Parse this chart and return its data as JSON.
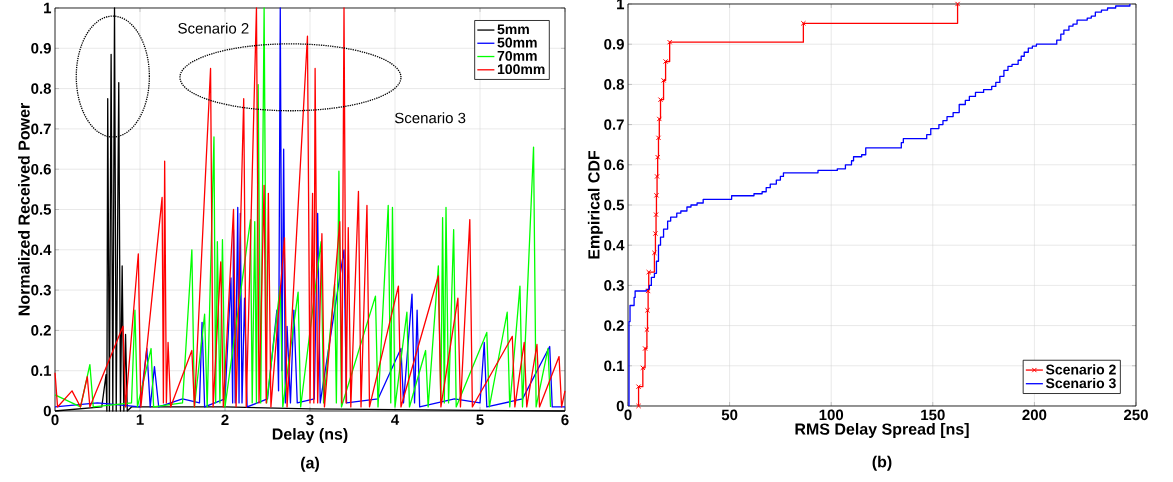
{
  "chart_data": [
    {
      "type": "line",
      "xlabel": "Delay (ns)",
      "ylabel": "Normalized Received Power",
      "xlim": [
        0,
        6
      ],
      "ylim": [
        0,
        1
      ],
      "xticks": [
        0,
        1,
        2,
        3,
        4,
        5,
        6
      ],
      "yticks": [
        0,
        0.1,
        0.2,
        0.3,
        0.4,
        0.5,
        0.6,
        0.7,
        0.8,
        0.9,
        1
      ],
      "grid": true,
      "legend": "top right",
      "annotations": [
        "Scenario 2",
        "Scenario 3",
        "(a)"
      ],
      "series": [
        {
          "name": "5mm",
          "color": "#000000",
          "x": [
            0,
            0.55,
            0.6,
            0.61,
            0.62,
            0.64,
            0.66,
            0.68,
            0.7,
            0.72,
            0.75,
            0.77,
            0.79,
            0.81,
            0.83,
            0.85,
            0.9,
            2,
            3,
            6
          ],
          "values": [
            0,
            0.01,
            0.09,
            0,
            0.775,
            0,
            0.885,
            0,
            1.0,
            0,
            0.815,
            0,
            0.36,
            0,
            0.19,
            0,
            0.01,
            0.01,
            0.005,
            0
          ]
        },
        {
          "name": "50mm",
          "color": "#0000ff",
          "x": [
            0,
            0.5,
            1.0,
            1.08,
            1.12,
            1.17,
            1.22,
            1.5,
            1.7,
            1.73,
            1.76,
            2.0,
            2.07,
            2.09,
            2.1,
            2.12,
            2.15,
            2.165,
            2.18,
            2.2,
            2.23,
            2.26,
            2.5,
            2.61,
            2.63,
            2.65,
            2.67,
            2.69,
            2.71,
            2.73,
            2.77,
            2.81,
            2.85,
            3.05,
            3.09,
            3.12,
            3.4,
            3.43,
            3.8,
            4.07,
            4.1,
            4.2,
            4.23,
            4.26,
            4.29,
            4.7,
            5.0,
            5.05,
            5.08,
            5.5,
            5.82,
            5.85,
            6
          ],
          "values": [
            0.01,
            0.02,
            0.01,
            0.155,
            0.01,
            0.11,
            0.01,
            0.03,
            0.02,
            0.22,
            0.01,
            0.03,
            0.33,
            0.02,
            0.45,
            0.02,
            0.505,
            0.02,
            0.49,
            0.02,
            0.28,
            0.01,
            0.03,
            0.25,
            0.05,
            1.0,
            0.1,
            0.65,
            0.02,
            0.21,
            0.02,
            0.25,
            0.02,
            0.03,
            0.49,
            0.02,
            0.4,
            0.02,
            0.03,
            0.155,
            0.02,
            0.29,
            0.02,
            0.25,
            0.01,
            0.03,
            0.02,
            0.17,
            0.01,
            0.03,
            0.16,
            0.01,
            0.01
          ]
        },
        {
          "name": "70mm",
          "color": "#00ff00",
          "x": [
            0,
            0.3,
            0.41,
            0.45,
            0.9,
            0.94,
            0.97,
            1.13,
            1.16,
            1.5,
            1.61,
            1.64,
            1.76,
            1.79,
            1.87,
            1.89,
            1.91,
            1.94,
            1.97,
            2.0,
            2.3,
            2.32,
            2.35,
            2.37,
            2.39,
            2.42,
            2.46,
            2.49,
            2.65,
            2.68,
            2.86,
            2.89,
            3.13,
            3.16,
            3.29,
            3.31,
            3.34,
            3.37,
            3.77,
            3.8,
            3.92,
            3.95,
            3.97,
            4.0,
            4.14,
            4.17,
            4.36,
            4.39,
            4.51,
            4.54,
            4.56,
            4.58,
            4.6,
            4.63,
            4.69,
            4.72,
            5.08,
            5.11,
            5.32,
            5.35,
            5.47,
            5.5,
            5.63,
            5.66,
            5.8,
            5.83
          ],
          "values": [
            0.04,
            0.01,
            0.115,
            0.01,
            0.02,
            0.25,
            0.01,
            0.155,
            0.01,
            0.02,
            0.4,
            0.01,
            0.24,
            0.01,
            0.68,
            0.02,
            0.42,
            0.02,
            0.425,
            0.01,
            0.475,
            0.02,
            0.47,
            0.02,
            0.81,
            0.02,
            1.0,
            0.02,
            0.31,
            0.01,
            0.295,
            0.01,
            0.42,
            0.02,
            0.315,
            0.02,
            0.595,
            0.01,
            0.285,
            0.01,
            0.51,
            0.02,
            0.505,
            0.01,
            0.245,
            0.01,
            0.15,
            0.01,
            0.36,
            0.02,
            0.48,
            0.02,
            0.505,
            0.02,
            0.45,
            0.01,
            0.195,
            0.01,
            0.245,
            0.01,
            0.31,
            0.01,
            0.655,
            0.01,
            0.155,
            0.01
          ]
        },
        {
          "name": "100mm",
          "color": "#ff0000",
          "x": [
            0,
            0.03,
            0.2,
            0.3,
            0.38,
            0.41,
            0.8,
            0.83,
            0.98,
            1.01,
            1.26,
            1.275,
            1.29,
            1.31,
            1.33,
            1.36,
            1.61,
            1.64,
            1.83,
            1.86,
            1.95,
            1.98,
            2.1,
            2.13,
            2.22,
            2.25,
            2.37,
            2.4,
            2.46,
            2.485,
            2.51,
            2.54,
            2.7,
            2.73,
            2.97,
            3.0,
            3.03,
            3.045,
            3.06,
            3.09,
            3.14,
            3.17,
            3.35,
            3.375,
            3.4,
            3.425,
            3.45,
            3.48,
            3.57,
            3.6,
            3.67,
            3.7,
            4.04,
            4.07,
            4.51,
            4.54,
            4.74,
            4.77,
            4.88,
            4.91,
            5.38,
            5.41,
            5.52,
            5.55,
            5.67,
            5.7,
            5.93,
            5.96,
            6
          ],
          "values": [
            0.095,
            0.01,
            0.05,
            0.01,
            0.085,
            0.01,
            0.21,
            0.01,
            0.39,
            0.01,
            0.53,
            0.02,
            0.62,
            0.02,
            0.17,
            0.01,
            0.15,
            0.01,
            0.85,
            0.01,
            0.37,
            0.01,
            0.5,
            0.01,
            0.775,
            0.01,
            1.0,
            0.02,
            0.56,
            0.02,
            0.54,
            0.01,
            0.43,
            0.01,
            0.93,
            0.02,
            0.54,
            0.02,
            0.85,
            0.02,
            0.44,
            0.01,
            0.47,
            0.02,
            1.0,
            0.02,
            0.455,
            0.01,
            0.545,
            0.01,
            0.51,
            0.01,
            0.31,
            0.01,
            0.335,
            0.01,
            0.28,
            0.01,
            0.475,
            0.01,
            0.185,
            0.01,
            0.17,
            0.01,
            0.165,
            0.01,
            0.135,
            0.01,
            0.05
          ]
        }
      ]
    },
    {
      "type": "step",
      "xlabel": "RMS Delay Spread [ns]",
      "ylabel": "Empirical CDF",
      "xlim": [
        0,
        250
      ],
      "ylim": [
        0,
        1
      ],
      "xticks": [
        0,
        50,
        100,
        150,
        200,
        250
      ],
      "yticks": [
        0,
        0.1,
        0.2,
        0.3,
        0.4,
        0.5,
        0.6,
        0.7,
        0.8,
        0.9,
        1
      ],
      "grid": true,
      "legend": "bottom right",
      "annotations": [
        "(b)"
      ],
      "series": [
        {
          "name": "Scenario 2",
          "color": "#ff0000",
          "marker": "cross",
          "x": [
            5.2,
            5.2,
            7.3,
            8.4,
            9.3,
            9.6,
            9.9,
            10.2,
            13.0,
            13.5,
            13.8,
            14.0,
            14.3,
            14.6,
            15.0,
            15.4,
            16.0,
            17.5,
            18.5,
            20.5,
            86.3,
            162.2
          ],
          "values": [
            0,
            0.048,
            0.095,
            0.143,
            0.19,
            0.238,
            0.286,
            0.333,
            0.381,
            0.429,
            0.476,
            0.524,
            0.571,
            0.619,
            0.667,
            0.714,
            0.762,
            0.81,
            0.857,
            0.905,
            0.952,
            1.0
          ]
        },
        {
          "name": "Scenario 3",
          "color": "#0000ff",
          "x": [
            0.5,
            0.5,
            1,
            3,
            3.5,
            9,
            10.5,
            11.5,
            13,
            14,
            15,
            16,
            17.5,
            19.5,
            21,
            24,
            26,
            29,
            31,
            34,
            37,
            51,
            62,
            66,
            68,
            70,
            73,
            75,
            76.5,
            93.5,
            103,
            107,
            110,
            111,
            115,
            117,
            134.5,
            135.5,
            147,
            149,
            153,
            155,
            157,
            160,
            163,
            166,
            168,
            171,
            175,
            179,
            181,
            183,
            185,
            187,
            189,
            192,
            193.5,
            195,
            197,
            199,
            201,
            211,
            213,
            214.5,
            217,
            219,
            221,
            226,
            228,
            230,
            233,
            236,
            240,
            247
          ],
          "values": [
            0,
            0.21,
            0.25,
            0.27,
            0.286,
            0.29,
            0.3,
            0.32,
            0.33,
            0.36,
            0.4,
            0.42,
            0.44,
            0.46,
            0.47,
            0.48,
            0.485,
            0.495,
            0.5,
            0.505,
            0.514,
            0.523,
            0.528,
            0.533,
            0.543,
            0.552,
            0.562,
            0.571,
            0.58,
            0.586,
            0.59,
            0.6,
            0.61,
            0.62,
            0.625,
            0.642,
            0.655,
            0.665,
            0.675,
            0.69,
            0.7,
            0.71,
            0.72,
            0.73,
            0.75,
            0.76,
            0.77,
            0.78,
            0.787,
            0.795,
            0.805,
            0.82,
            0.835,
            0.845,
            0.85,
            0.86,
            0.87,
            0.88,
            0.89,
            0.895,
            0.9,
            0.91,
            0.925,
            0.935,
            0.945,
            0.95,
            0.96,
            0.965,
            0.97,
            0.98,
            0.985,
            0.99,
            0.995,
            1.0
          ]
        }
      ]
    }
  ]
}
